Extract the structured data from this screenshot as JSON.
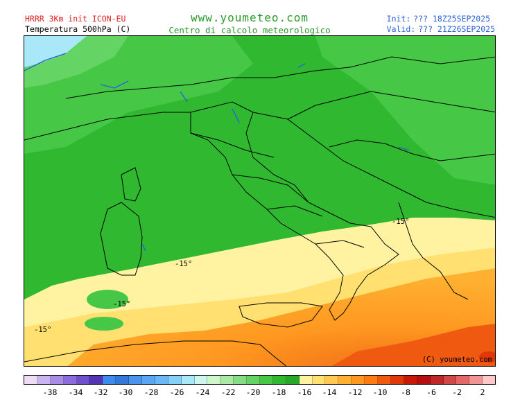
{
  "header": {
    "model": "HRRR 3Km init ICON-EU",
    "variable": "Temperatura 500hPa (C)",
    "site": "www.youmeteo.com",
    "subtitle": "Centro di calcolo meteorologico",
    "init_label": "Init:",
    "init_value": "??? 18Z25SEP2025",
    "valid_label": "Valid:",
    "valid_value": "??? 21Z26SEP2025"
  },
  "map": {
    "copyright": "(C) youmeteo.com",
    "contour_labels": [
      "-15°",
      "-15°",
      "-15°",
      "-15°"
    ]
  },
  "colorbar": {
    "colors": [
      "#f0dcf4",
      "#c8b4f0",
      "#a88ce6",
      "#8c6cdc",
      "#7050cc",
      "#5434b4",
      "#3c8cf0",
      "#3478dc",
      "#4a94ec",
      "#5aa6f2",
      "#6cb8f6",
      "#84d0f8",
      "#a8e8f8",
      "#cdf6f0",
      "#cef6c8",
      "#a8eaa4",
      "#86dc84",
      "#64d464",
      "#46c846",
      "#30b830",
      "#28a828",
      "#fff2a0",
      "#ffe070",
      "#ffc850",
      "#ffb030",
      "#ff9820",
      "#ff7a10",
      "#f05a10",
      "#e03808",
      "#c81808",
      "#b41010",
      "#c02828",
      "#d04848",
      "#e46868",
      "#f09494",
      "#fcc8c8"
    ],
    "ticks": [
      "-38",
      "-34",
      "-32",
      "-30",
      "-28",
      "-26",
      "-24",
      "-22",
      "-20",
      "-18",
      "-16",
      "-14",
      "-12",
      "-10",
      "-8",
      "-6",
      "-2",
      "2"
    ]
  }
}
